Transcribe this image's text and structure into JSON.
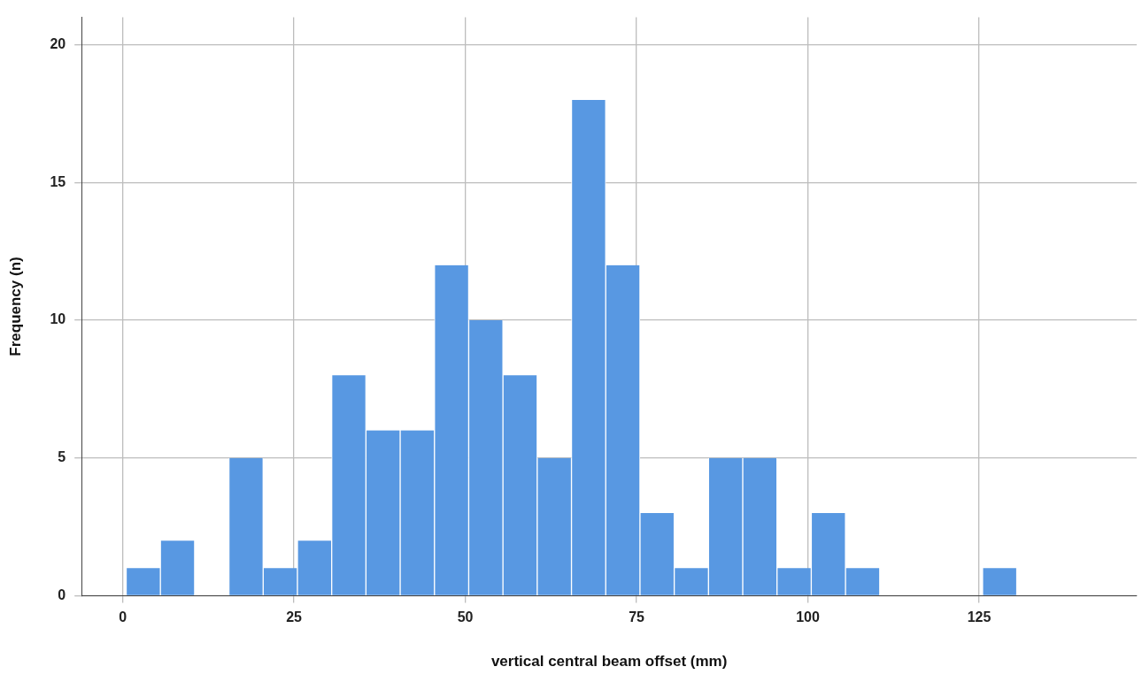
{
  "chart_data": {
    "type": "histogram",
    "xlabel": "vertical central beam offset (mm)",
    "ylabel": "Frequency (n)",
    "bins": [
      0.5,
      5.5,
      10.5,
      15.5,
      20.5,
      25.5,
      30.5,
      35.5,
      40.5,
      45.5,
      50.5,
      55.5,
      60.5,
      65.5,
      70.5,
      75.5,
      80.5,
      85.5,
      90.5,
      95.5,
      100.5,
      105.5,
      110.5,
      115.5,
      120.5,
      125.5,
      130.5
    ],
    "values": [
      1,
      2,
      0,
      5,
      1,
      2,
      8,
      6,
      6,
      12,
      10,
      8,
      5,
      18,
      12,
      3,
      1,
      5,
      5,
      1,
      3,
      1,
      0,
      0,
      0,
      1
    ],
    "color": "#5898e2",
    "xlim": [
      -6,
      148
    ],
    "xticks": [
      0,
      25,
      50,
      75,
      100,
      125
    ],
    "ylim": [
      0,
      21
    ],
    "yticks": [
      0,
      5,
      10,
      15,
      20
    ],
    "grid": true,
    "legend": false
  }
}
